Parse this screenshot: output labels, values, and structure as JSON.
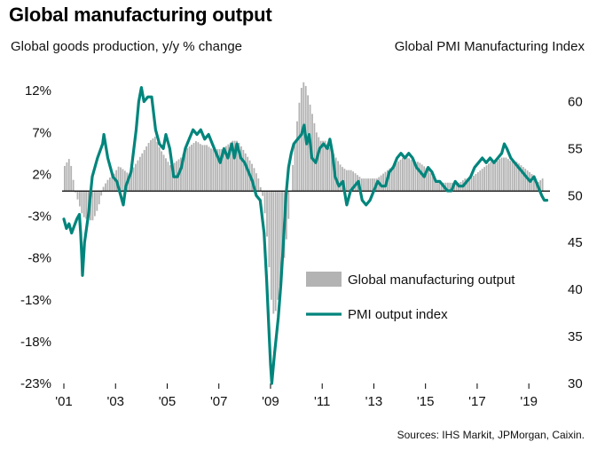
{
  "title": "Global manufacturing output",
  "source": "Sources: IHS Markit, JPMorgan, Caixin.",
  "colors": {
    "bars": "#b3b3b3",
    "line": "#00857c",
    "axis": "#000000"
  },
  "chart_data": {
    "type": "bar+line",
    "title": "Global manufacturing output",
    "ylabel_left": "Global  goods production, y/y % change",
    "ylabel_right": "Global  PMI Manufacturing Index",
    "x_range": [
      2001.0,
      2019.75
    ],
    "ylim_left": [
      -23,
      13.5
    ],
    "ylim_right": [
      30,
      62.5
    ],
    "left_ticks": [
      {
        "value": 12,
        "label": "12%"
      },
      {
        "value": 7,
        "label": "7%"
      },
      {
        "value": 2,
        "label": "2%"
      },
      {
        "value": -3,
        "label": "-3%"
      },
      {
        "value": -8,
        "label": "-8%"
      },
      {
        "value": -13,
        "label": "-13%"
      },
      {
        "value": -18,
        "label": "-18%"
      },
      {
        "value": -23,
        "label": "-23%"
      }
    ],
    "right_ticks": [
      {
        "value": 60,
        "label": "60"
      },
      {
        "value": 55,
        "label": "55"
      },
      {
        "value": 50,
        "label": "50"
      },
      {
        "value": 45,
        "label": "45"
      },
      {
        "value": 40,
        "label": "40"
      },
      {
        "value": 35,
        "label": "35"
      },
      {
        "value": 30,
        "label": "30"
      }
    ],
    "x_ticks": [
      {
        "value": 2001,
        "label": "'01"
      },
      {
        "value": 2003,
        "label": "'03"
      },
      {
        "value": 2005,
        "label": "'05"
      },
      {
        "value": 2007,
        "label": "'07"
      },
      {
        "value": 2009,
        "label": "'09"
      },
      {
        "value": 2011,
        "label": "'11"
      },
      {
        "value": 2013,
        "label": "'13"
      },
      {
        "value": 2015,
        "label": "'15"
      },
      {
        "value": 2017,
        "label": "'17"
      },
      {
        "value": 2019,
        "label": "'19"
      }
    ],
    "legend": [
      {
        "label": "Global manufacturing output",
        "kind": "bar"
      },
      {
        "label": "PMI output index",
        "kind": "line"
      }
    ],
    "series": [
      {
        "name": "Global manufacturing output",
        "axis": "left",
        "kind": "bar",
        "points": [
          [
            2001.0,
            3
          ],
          [
            2001.2,
            4
          ],
          [
            2001.4,
            0
          ],
          [
            2001.5,
            -1
          ],
          [
            2001.7,
            -3
          ],
          [
            2001.9,
            -3.5
          ],
          [
            2002.1,
            -3.5
          ],
          [
            2002.3,
            -2
          ],
          [
            2002.5,
            0.5
          ],
          [
            2002.7,
            1.5
          ],
          [
            2002.9,
            2
          ],
          [
            2003.1,
            3
          ],
          [
            2003.3,
            2.5
          ],
          [
            2003.5,
            2
          ],
          [
            2003.7,
            3
          ],
          [
            2003.9,
            4
          ],
          [
            2004.1,
            5
          ],
          [
            2004.3,
            6
          ],
          [
            2004.5,
            6.5
          ],
          [
            2004.7,
            5
          ],
          [
            2004.9,
            4
          ],
          [
            2005.1,
            3
          ],
          [
            2005.3,
            3.5
          ],
          [
            2005.5,
            4
          ],
          [
            2005.7,
            5
          ],
          [
            2005.9,
            5.5
          ],
          [
            2006.1,
            6
          ],
          [
            2006.3,
            5.5
          ],
          [
            2006.5,
            5.5
          ],
          [
            2006.7,
            5
          ],
          [
            2006.9,
            5
          ],
          [
            2007.1,
            5
          ],
          [
            2007.3,
            5.5
          ],
          [
            2007.5,
            6
          ],
          [
            2007.7,
            6
          ],
          [
            2007.9,
            5
          ],
          [
            2008.1,
            4
          ],
          [
            2008.3,
            3
          ],
          [
            2008.5,
            1.5
          ],
          [
            2008.7,
            -1
          ],
          [
            2008.85,
            -6
          ],
          [
            2009.0,
            -13
          ],
          [
            2009.1,
            -15
          ],
          [
            2009.2,
            -14
          ],
          [
            2009.35,
            -11
          ],
          [
            2009.5,
            -8
          ],
          [
            2009.65,
            -4
          ],
          [
            2009.8,
            2
          ],
          [
            2009.95,
            7
          ],
          [
            2010.1,
            11
          ],
          [
            2010.2,
            13
          ],
          [
            2010.3,
            13
          ],
          [
            2010.45,
            11
          ],
          [
            2010.6,
            9
          ],
          [
            2010.75,
            7
          ],
          [
            2010.9,
            6
          ],
          [
            2011.1,
            6
          ],
          [
            2011.3,
            5
          ],
          [
            2011.5,
            4
          ],
          [
            2011.7,
            3
          ],
          [
            2011.9,
            2.5
          ],
          [
            2012.1,
            2.5
          ],
          [
            2012.3,
            2
          ],
          [
            2012.5,
            1.5
          ],
          [
            2012.7,
            1.5
          ],
          [
            2012.9,
            1.5
          ],
          [
            2013.1,
            1.5
          ],
          [
            2013.3,
            2
          ],
          [
            2013.5,
            2.5
          ],
          [
            2013.7,
            3
          ],
          [
            2013.9,
            3.5
          ],
          [
            2014.1,
            4
          ],
          [
            2014.3,
            4
          ],
          [
            2014.5,
            3.5
          ],
          [
            2014.7,
            3.5
          ],
          [
            2014.9,
            3
          ],
          [
            2015.1,
            2.5
          ],
          [
            2015.3,
            1.5
          ],
          [
            2015.5,
            1
          ],
          [
            2015.7,
            1
          ],
          [
            2015.9,
            1
          ],
          [
            2016.1,
            1
          ],
          [
            2016.3,
            1
          ],
          [
            2016.5,
            1.5
          ],
          [
            2016.7,
            1.5
          ],
          [
            2016.9,
            2
          ],
          [
            2017.1,
            2.5
          ],
          [
            2017.3,
            3
          ],
          [
            2017.5,
            3.5
          ],
          [
            2017.7,
            3.5
          ],
          [
            2017.9,
            4
          ],
          [
            2018.1,
            4
          ],
          [
            2018.3,
            3.5
          ],
          [
            2018.5,
            3.5
          ],
          [
            2018.7,
            3
          ],
          [
            2018.9,
            2.5
          ],
          [
            2019.1,
            2
          ],
          [
            2019.3,
            1
          ],
          [
            2019.5,
            1.5
          ]
        ]
      },
      {
        "name": "PMI output index",
        "axis": "right",
        "kind": "line",
        "points": [
          [
            2001.0,
            47.5
          ],
          [
            2001.1,
            46.5
          ],
          [
            2001.2,
            47
          ],
          [
            2001.3,
            46
          ],
          [
            2001.5,
            47.5
          ],
          [
            2001.6,
            48
          ],
          [
            2001.65,
            46
          ],
          [
            2001.7,
            43
          ],
          [
            2001.72,
            41.5
          ],
          [
            2001.8,
            45
          ],
          [
            2001.95,
            48
          ],
          [
            2002.1,
            52
          ],
          [
            2002.3,
            54
          ],
          [
            2002.5,
            55.5
          ],
          [
            2002.55,
            56.5
          ],
          [
            2002.7,
            54
          ],
          [
            2002.9,
            52
          ],
          [
            2003.05,
            51.5
          ],
          [
            2003.2,
            50
          ],
          [
            2003.3,
            49
          ],
          [
            2003.4,
            51
          ],
          [
            2003.6,
            52.5
          ],
          [
            2003.8,
            57
          ],
          [
            2003.9,
            60
          ],
          [
            2004.0,
            61.5
          ],
          [
            2004.1,
            60
          ],
          [
            2004.25,
            60.5
          ],
          [
            2004.4,
            60.5
          ],
          [
            2004.55,
            57
          ],
          [
            2004.7,
            55.5
          ],
          [
            2004.85,
            55
          ],
          [
            2004.95,
            56.5
          ],
          [
            2005.1,
            55
          ],
          [
            2005.25,
            52
          ],
          [
            2005.4,
            52
          ],
          [
            2005.55,
            53
          ],
          [
            2005.7,
            55
          ],
          [
            2005.85,
            56
          ],
          [
            2006.0,
            57
          ],
          [
            2006.15,
            56.5
          ],
          [
            2006.3,
            57
          ],
          [
            2006.45,
            56
          ],
          [
            2006.6,
            56.5
          ],
          [
            2006.75,
            55.5
          ],
          [
            2006.9,
            54.5
          ],
          [
            2007.05,
            53.5
          ],
          [
            2007.2,
            55
          ],
          [
            2007.35,
            54
          ],
          [
            2007.5,
            55.5
          ],
          [
            2007.6,
            54
          ],
          [
            2007.7,
            55.5
          ],
          [
            2007.85,
            54
          ],
          [
            2008.0,
            53.5
          ],
          [
            2008.15,
            52.5
          ],
          [
            2008.3,
            51.5
          ],
          [
            2008.45,
            50
          ],
          [
            2008.6,
            49.5
          ],
          [
            2008.75,
            46
          ],
          [
            2008.85,
            41
          ],
          [
            2008.95,
            35
          ],
          [
            2009.0,
            32
          ],
          [
            2009.05,
            30
          ],
          [
            2009.15,
            33
          ],
          [
            2009.3,
            37
          ],
          [
            2009.4,
            40.5
          ],
          [
            2009.5,
            45
          ],
          [
            2009.6,
            50
          ],
          [
            2009.7,
            53
          ],
          [
            2009.8,
            54.5
          ],
          [
            2009.9,
            55.5
          ],
          [
            2010.05,
            56
          ],
          [
            2010.2,
            56.5
          ],
          [
            2010.3,
            57.5
          ],
          [
            2010.4,
            55.5
          ],
          [
            2010.5,
            56.5
          ],
          [
            2010.6,
            54
          ],
          [
            2010.75,
            53.5
          ],
          [
            2010.9,
            55
          ],
          [
            2011.05,
            55.5
          ],
          [
            2011.2,
            55
          ],
          [
            2011.3,
            56
          ],
          [
            2011.4,
            54.5
          ],
          [
            2011.5,
            52
          ],
          [
            2011.65,
            51
          ],
          [
            2011.8,
            51.5
          ],
          [
            2011.95,
            49
          ],
          [
            2012.1,
            50.5
          ],
          [
            2012.25,
            51
          ],
          [
            2012.4,
            51.5
          ],
          [
            2012.55,
            49.5
          ],
          [
            2012.7,
            49
          ],
          [
            2012.85,
            49.5
          ],
          [
            2013.0,
            50.5
          ],
          [
            2013.15,
            51.5
          ],
          [
            2013.3,
            51
          ],
          [
            2013.45,
            51
          ],
          [
            2013.6,
            52.5
          ],
          [
            2013.75,
            53
          ],
          [
            2013.9,
            54
          ],
          [
            2014.05,
            54.5
          ],
          [
            2014.2,
            54
          ],
          [
            2014.35,
            54.5
          ],
          [
            2014.5,
            54
          ],
          [
            2014.65,
            53
          ],
          [
            2014.8,
            52.5
          ],
          [
            2014.95,
            52
          ],
          [
            2015.1,
            53
          ],
          [
            2015.25,
            52.5
          ],
          [
            2015.4,
            51.5
          ],
          [
            2015.55,
            51.5
          ],
          [
            2015.7,
            51
          ],
          [
            2015.85,
            50.5
          ],
          [
            2016.0,
            50.5
          ],
          [
            2016.15,
            51.5
          ],
          [
            2016.3,
            51
          ],
          [
            2016.45,
            51
          ],
          [
            2016.6,
            51.5
          ],
          [
            2016.75,
            52
          ],
          [
            2016.9,
            53
          ],
          [
            2017.05,
            53.5
          ],
          [
            2017.2,
            54
          ],
          [
            2017.35,
            53.5
          ],
          [
            2017.5,
            54
          ],
          [
            2017.65,
            53.5
          ],
          [
            2017.8,
            54
          ],
          [
            2017.95,
            54.5
          ],
          [
            2018.05,
            55.5
          ],
          [
            2018.15,
            55
          ],
          [
            2018.3,
            54
          ],
          [
            2018.45,
            53.5
          ],
          [
            2018.6,
            53
          ],
          [
            2018.75,
            52.5
          ],
          [
            2018.9,
            52
          ],
          [
            2019.05,
            51.5
          ],
          [
            2019.2,
            52
          ],
          [
            2019.35,
            51
          ],
          [
            2019.5,
            50
          ],
          [
            2019.6,
            49.5
          ],
          [
            2019.7,
            49.5
          ]
        ]
      }
    ]
  }
}
